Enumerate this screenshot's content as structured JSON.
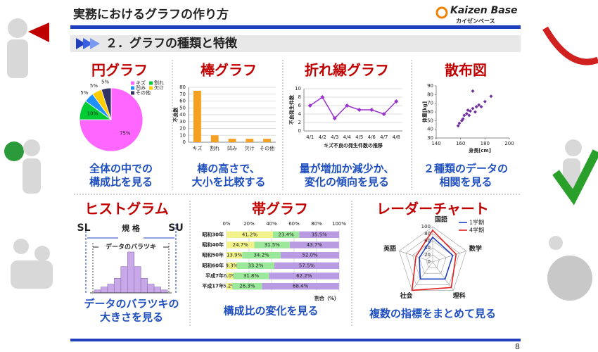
{
  "header": {
    "title": "実務におけるグラフの作り方",
    "logo": "Kaizen Base",
    "logo_sub": "カイゼンベース"
  },
  "section": "２．グラフの種類と特徴",
  "page_number": "8",
  "panels": [
    {
      "title": "円グラフ",
      "caption": [
        "全体の中での",
        "構成比を見る"
      ]
    },
    {
      "title": "棒グラフ",
      "caption": [
        "棒の高さで、",
        "大小を比較する"
      ]
    },
    {
      "title": "折れ線グラフ",
      "caption": [
        "量が増加か減少か、",
        "変化の傾向を見る"
      ]
    },
    {
      "title": "散布図",
      "caption": [
        "２種類のデータの",
        "相関を見る"
      ]
    },
    {
      "title": "ヒストグラム",
      "caption": [
        "データのバラツキの",
        "大きさを見る"
      ]
    },
    {
      "title": "帯グラフ",
      "caption": [
        "構成比の変化を見る"
      ]
    },
    {
      "title": "レーダーチャート",
      "caption": [
        "複数の指標をまとめて見る"
      ]
    }
  ],
  "chart_data": [
    {
      "type": "pie",
      "categories": [
        "キズ",
        "割れ",
        "凹み",
        "欠け",
        "その他"
      ],
      "values": [
        75,
        10,
        5,
        5,
        5
      ],
      "value_labels": [
        "75%",
        "10%",
        "5%",
        "5%",
        "5%"
      ],
      "colors": [
        "#ff66ff",
        "#00cc33",
        "#1e90ff",
        "#ffcc00",
        "#333366"
      ],
      "legend": "top-right"
    },
    {
      "type": "bar",
      "categories": [
        "キズ",
        "割れ",
        "凹み",
        "欠け",
        "その他"
      ],
      "values": [
        75,
        10,
        5,
        5,
        5
      ],
      "color": "#f5a020",
      "ylabel": "不良数",
      "ylim": [
        0,
        80
      ],
      "yticks": [
        0,
        10,
        20,
        30,
        40,
        50,
        60,
        70,
        80
      ],
      "grid": true
    },
    {
      "type": "line",
      "categories": [
        "4/1",
        "4/2",
        "4/3",
        "4/4",
        "4/5",
        "4/6",
        "4/7",
        "4/8"
      ],
      "values": [
        6,
        8,
        3,
        6,
        5,
        5,
        4,
        7
      ],
      "color": "#9933cc",
      "ylabel": "不良発生件数",
      "xlabel": "キズ不良の発生件数の推移",
      "ylim": [
        0,
        10
      ],
      "yticks": [
        0,
        2,
        4,
        6,
        8,
        10
      ],
      "grid": true
    },
    {
      "type": "scatter",
      "x": [
        158,
        159,
        161,
        162,
        163,
        165,
        166,
        167,
        168,
        170,
        170,
        172,
        173,
        175,
        177,
        180,
        185
      ],
      "values": [
        44,
        47,
        50,
        52,
        56,
        58,
        62,
        56,
        61,
        84,
        64,
        60,
        66,
        68,
        66,
        72,
        78
      ],
      "color": "#7030a0",
      "xlabel": "身長[cm]",
      "ylabel": "体重[kg]",
      "xlim": [
        140,
        200
      ],
      "xticks": [
        140,
        160,
        180,
        200
      ],
      "ylim": [
        30,
        90
      ],
      "yticks": [
        30,
        40,
        50,
        60,
        70,
        80,
        90
      ],
      "grid": false
    },
    {
      "type": "histogram",
      "bins": [
        0,
        1,
        2,
        3,
        4,
        5,
        6,
        7,
        8,
        9,
        10,
        11
      ],
      "values": [
        1,
        2,
        3,
        5,
        9,
        14,
        9,
        5,
        3,
        2,
        1
      ],
      "color": "#c9a8e8",
      "spec_lower": "SL",
      "spec_upper": "SU",
      "spec_label": "規 格",
      "spread_label": "データのバラツキ"
    },
    {
      "type": "stacked_bar",
      "categories": [
        "昭和30年",
        "昭和40年",
        "昭和50年",
        "昭和60年",
        "平成7年",
        "平成17年"
      ],
      "series": [
        {
          "color": "#f2f28a",
          "values": [
            41.2,
            24.7,
            13.9,
            9.3,
            6.0,
            5.2
          ],
          "value_labels": [
            "41.2%",
            "24.7%",
            "13.9%",
            "9.3%",
            "6.0%",
            "5.2%"
          ]
        },
        {
          "color": "#9be89b",
          "values": [
            23.4,
            31.5,
            34.2,
            33.2,
            31.8,
            26.3
          ],
          "value_labels": [
            "23.4%",
            "31.5%",
            "34.2%",
            "33.2%",
            "31.8%",
            "26.3%"
          ]
        },
        {
          "color": "#b89be0",
          "values": [
            35.5,
            43.7,
            52.0,
            57.5,
            62.2,
            68.4
          ],
          "value_labels": [
            "35.5%",
            "43.7%",
            "52.0%",
            "57.5%",
            "62.2%",
            "68.4%"
          ]
        }
      ],
      "xlabel": "割合（%）",
      "xlim": [
        0,
        100
      ],
      "xticks": [
        {
          "value": 0,
          "label": "0%"
        },
        {
          "value": 20,
          "label": "20%"
        },
        {
          "value": 40,
          "label": "40%"
        },
        {
          "value": 60,
          "label": "60%"
        },
        {
          "value": 80,
          "label": "80%"
        },
        {
          "value": 100,
          "label": "100%"
        }
      ]
    },
    {
      "type": "radar",
      "categories": [
        "国語",
        "数学",
        "理科",
        "社会",
        "英語"
      ],
      "series": [
        {
          "name": "1学期",
          "color": "#1f3fbf",
          "values": [
            70,
            60,
            60,
            60,
            40
          ]
        },
        {
          "name": "4学期",
          "color": "#e02020",
          "values": [
            90,
            70,
            90,
            100,
            50
          ]
        }
      ],
      "rlim": [
        0,
        100
      ],
      "rticks": [
        0,
        20,
        40,
        60,
        80,
        100
      ],
      "legend": "top-right"
    }
  ]
}
